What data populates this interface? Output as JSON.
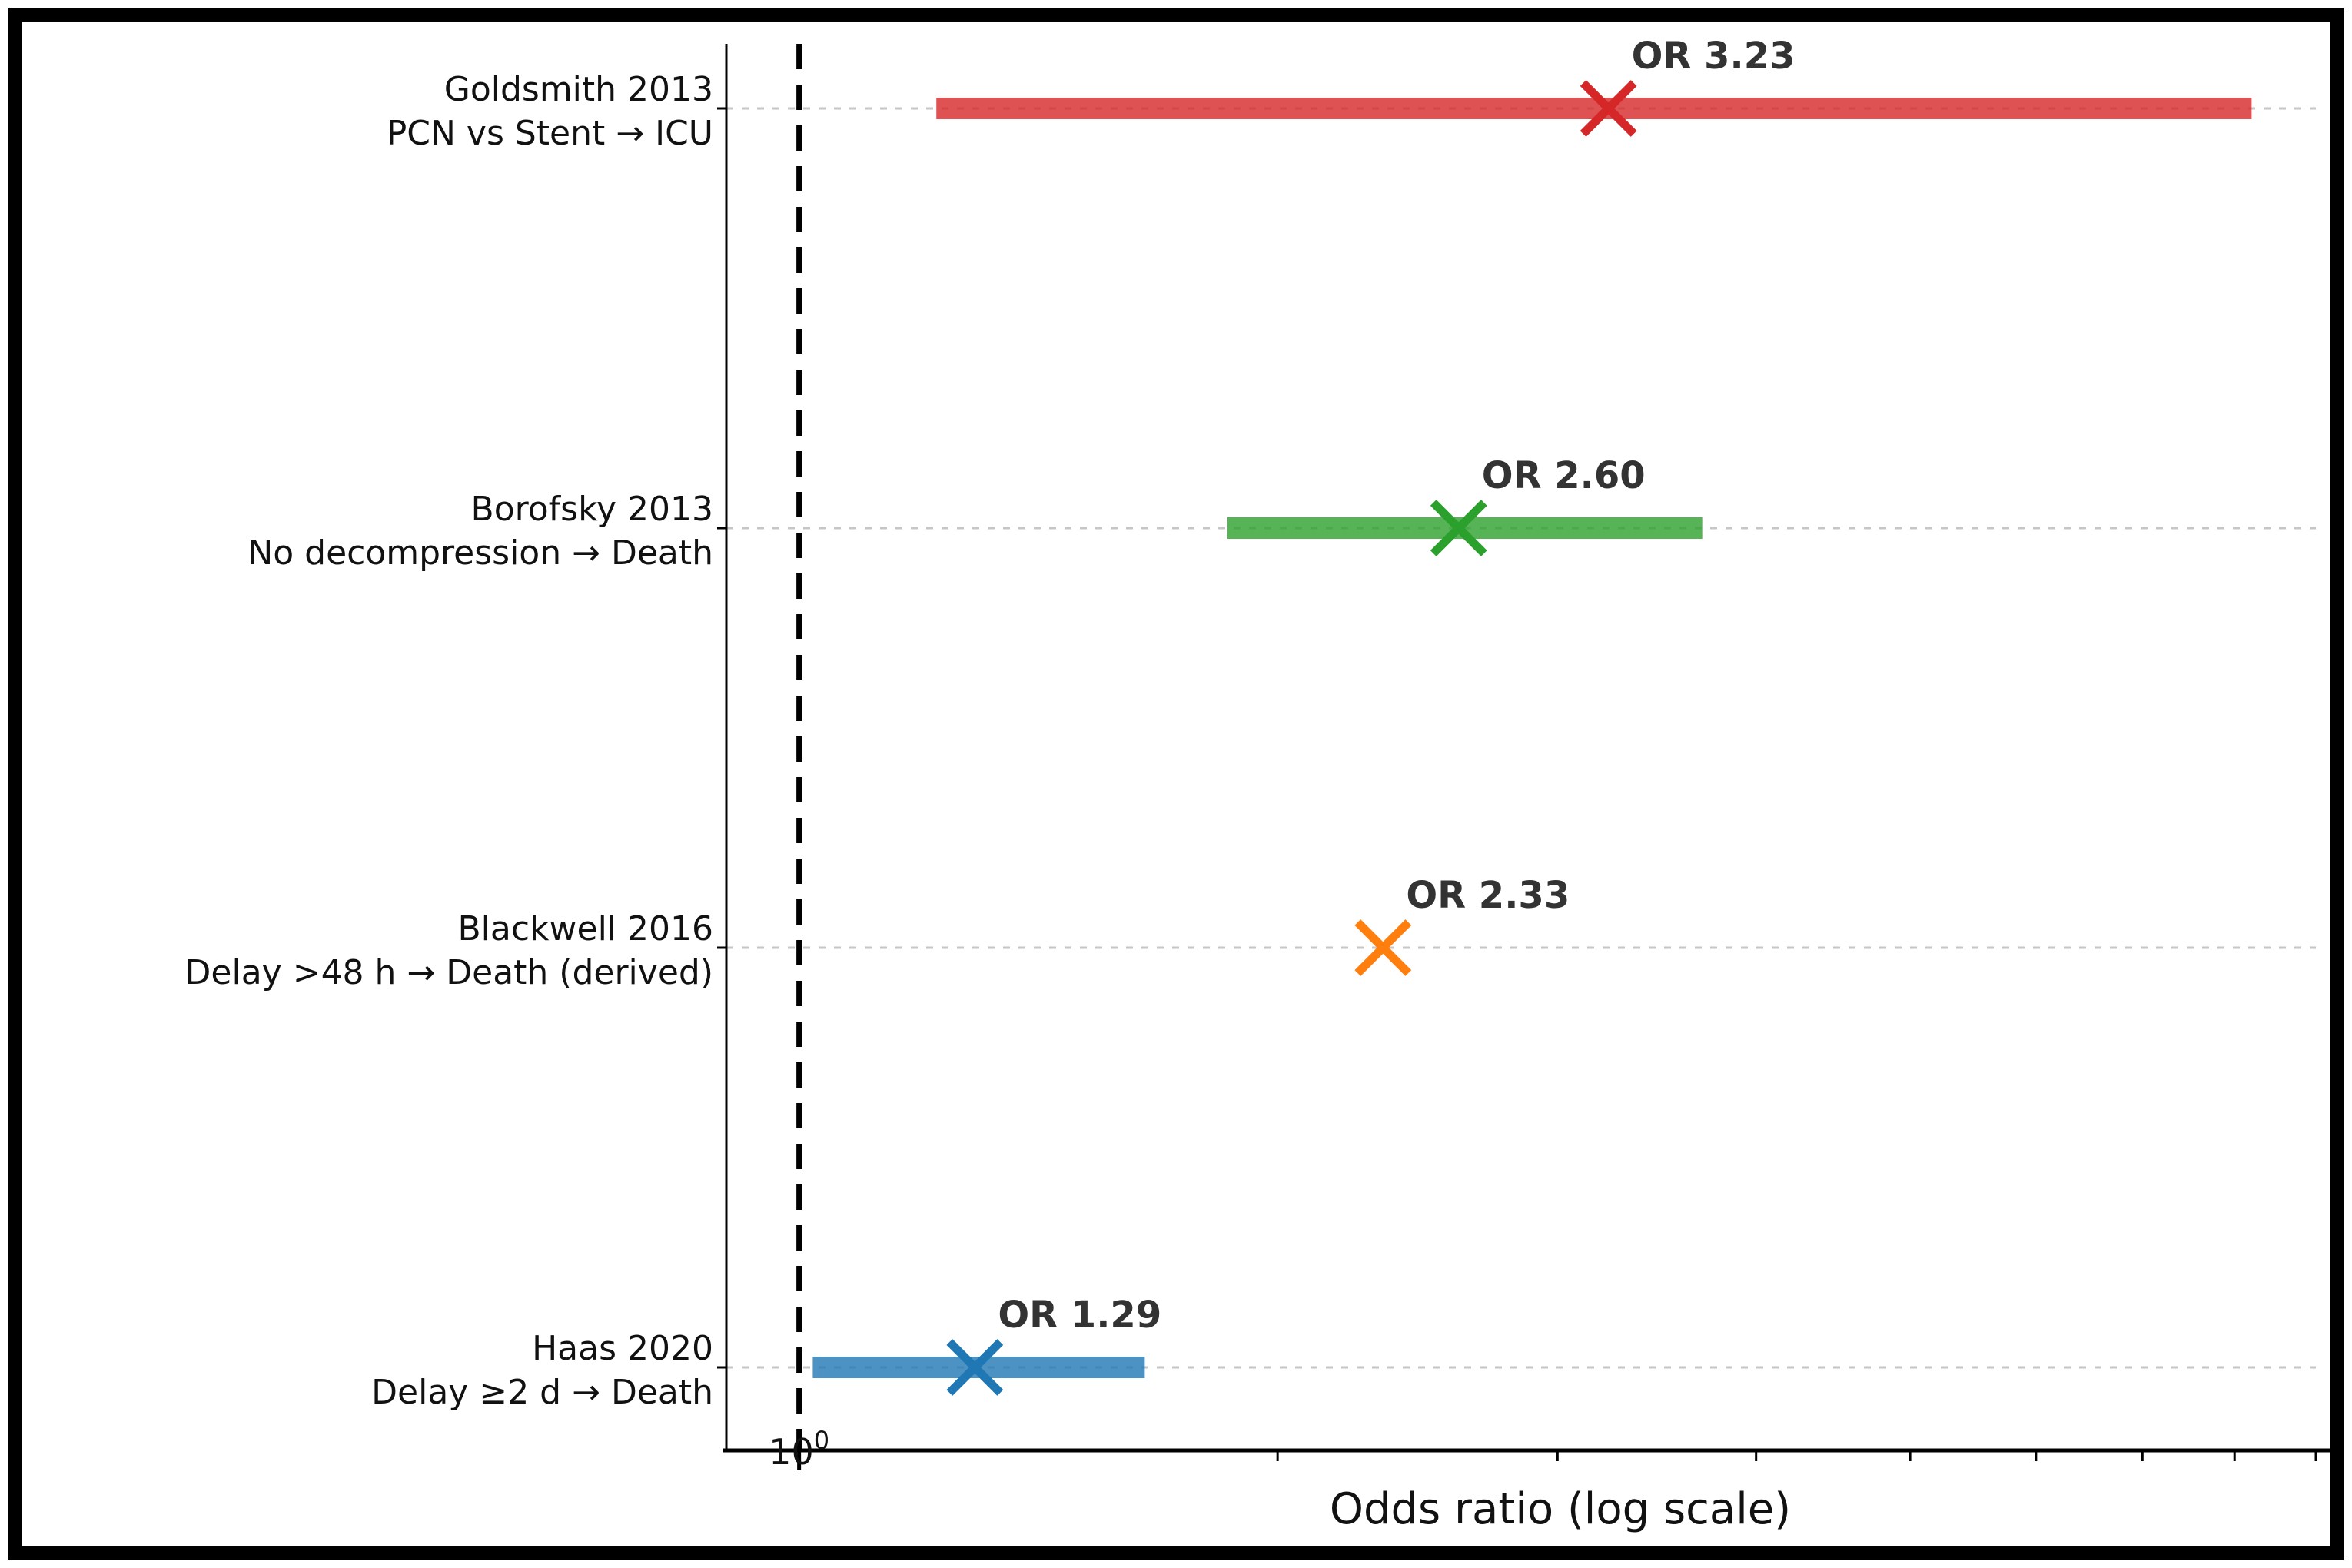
{
  "figure": {
    "background": "#ffffff",
    "border_color": "#000000",
    "text_color": "#111111"
  },
  "chart_data": {
    "type": "scatter",
    "subtype": "forest-plot",
    "title": "",
    "xlabel": "Odds ratio (log scale)",
    "ylabel": "",
    "x_scale": "log",
    "xlim": [
      0.9,
      9.0
    ],
    "grid": true,
    "grid_color": "#c6c6c6",
    "reference_line_x": 1.0,
    "x_major_ticks": [
      {
        "value": 1,
        "label_base": "10",
        "label_exponent": "0"
      }
    ],
    "x_minor_ticks": [
      2,
      3,
      4,
      5,
      6,
      7,
      8,
      9
    ],
    "annotation_color": "#333333",
    "bar_fill_opacity": 0.8,
    "studies": [
      {
        "label_line1": "Goldsmith 2013",
        "label_line2": "PCN vs Stent → ICU",
        "or": 3.23,
        "annotation": "OR 3.23",
        "ci_low": 1.22,
        "ci_high": 8.2,
        "color": "#d62728"
      },
      {
        "label_line1": "Borofsky 2013",
        "label_line2": "No decompression → Death",
        "or": 2.6,
        "annotation": "OR 2.60",
        "ci_low": 1.86,
        "ci_high": 3.7,
        "color": "#2ca02c"
      },
      {
        "label_line1": "Blackwell 2016",
        "label_line2": "Delay >48 h → Death (derived)",
        "or": 2.33,
        "annotation": "OR 2.33",
        "ci_low": null,
        "ci_high": null,
        "color": "#ff7f0e"
      },
      {
        "label_line1": "Haas 2020",
        "label_line2": "Delay ≥2 d → Death",
        "or": 1.29,
        "annotation": "OR 1.29",
        "ci_low": 1.02,
        "ci_high": 1.65,
        "color": "#1f77b4"
      }
    ]
  }
}
